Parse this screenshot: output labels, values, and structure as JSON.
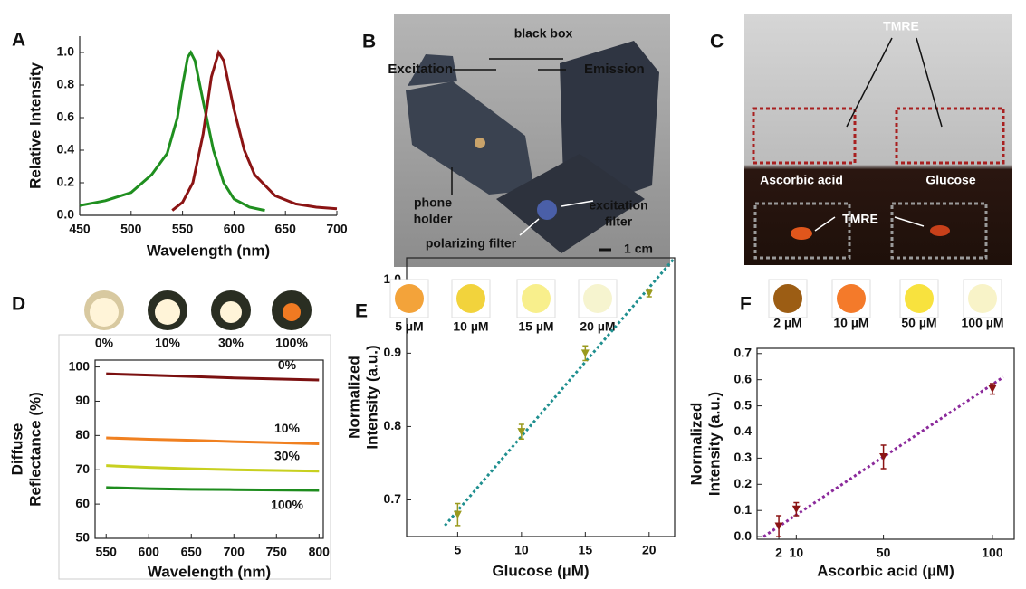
{
  "chart_data": [
    {
      "type": "line",
      "panel": "A",
      "xlabel": "Wavelength (nm)",
      "ylabel": [
        "Relative Intensity"
      ],
      "xlim": [
        450,
        700
      ],
      "ylim": [
        0,
        1.1
      ],
      "xticks": [
        450,
        500,
        550,
        600,
        650,
        700
      ],
      "yticks": [
        {
          "value": 0,
          "label": "0.0"
        },
        0.2,
        0.4,
        0.6,
        0.8,
        {
          "value": 1,
          "label": "1.0"
        }
      ],
      "series": [
        {
          "name": "Excitation",
          "color": "#1f8f1f",
          "x": [
            450,
            475,
            500,
            520,
            535,
            545,
            550,
            555,
            558,
            562,
            570,
            580,
            590,
            600,
            615,
            630
          ],
          "values": [
            0.06,
            0.09,
            0.14,
            0.25,
            0.38,
            0.6,
            0.8,
            0.97,
            1.0,
            0.95,
            0.7,
            0.4,
            0.2,
            0.1,
            0.05,
            0.03
          ]
        },
        {
          "name": "Emission",
          "color": "#8b1414",
          "x": [
            540,
            550,
            560,
            570,
            578,
            585,
            590,
            600,
            610,
            620,
            640,
            660,
            680,
            700
          ],
          "values": [
            0.03,
            0.08,
            0.2,
            0.5,
            0.85,
            1.0,
            0.95,
            0.65,
            0.4,
            0.25,
            0.12,
            0.07,
            0.05,
            0.04
          ]
        }
      ]
    },
    {
      "type": "line",
      "panel": "D",
      "xlabel": "Wavelength (nm)",
      "ylabel": [
        "Diffuse",
        "Reflectance (%)"
      ],
      "xlim": [
        537,
        805
      ],
      "ylim": [
        50,
        102
      ],
      "xticks": [
        550,
        600,
        650,
        700,
        750,
        800
      ],
      "yticks": [
        50,
        60,
        70,
        80,
        90,
        100
      ],
      "series": [
        {
          "name": "0%",
          "color": "#7b1010",
          "x": [
            550,
            600,
            650,
            700,
            750,
            800
          ],
          "values": [
            98,
            97.6,
            97.2,
            96.8,
            96.5,
            96.2
          ]
        },
        {
          "name": "10%",
          "color": "#f08020",
          "x": [
            550,
            600,
            650,
            700,
            750,
            800
          ],
          "values": [
            79.3,
            78.9,
            78.6,
            78.2,
            77.9,
            77.6
          ]
        },
        {
          "name": "30%",
          "color": "#c8d020",
          "x": [
            550,
            600,
            650,
            700,
            750,
            800
          ],
          "values": [
            71.2,
            70.7,
            70.3,
            70,
            69.8,
            69.6
          ]
        },
        {
          "name": "100%",
          "color": "#1e8c1e",
          "x": [
            550,
            600,
            650,
            700,
            750,
            800
          ],
          "values": [
            64.8,
            64.5,
            64.3,
            64.2,
            64.1,
            64
          ]
        }
      ]
    },
    {
      "type": "scatter",
      "panel": "E",
      "xlabel": "Glucose (µM)",
      "ylabel": [
        "Normalized",
        "Intensity (a.u.)"
      ],
      "xlim": [
        1,
        22
      ],
      "ylim": [
        0.65,
        1.03
      ],
      "xticks": [
        5,
        10,
        15,
        20
      ],
      "yticks": [
        0.7,
        0.8,
        0.9,
        {
          "value": 1,
          "label": "1.0"
        }
      ],
      "swatches": [
        {
          "label": "5 µM",
          "color": "#f3a33a"
        },
        {
          "label": "10 µM",
          "color": "#f2d33c"
        },
        {
          "label": "15 µM",
          "color": "#f8ef8c"
        },
        {
          "label": "20 µM",
          "color": "#f6f4cf"
        }
      ],
      "color": "#9a9a1e",
      "x": [
        5,
        10,
        15,
        20
      ],
      "values": [
        0.68,
        0.793,
        0.9,
        0.982
      ],
      "errors": [
        0.015,
        0.01,
        0.01,
        0.005
      ],
      "fit": {
        "color": "#1f8f8f",
        "x": [
          4,
          22
        ],
        "values": [
          0.665,
          1.03
        ]
      }
    },
    {
      "type": "scatter",
      "panel": "F",
      "xlabel": "Ascorbic acid (µM)",
      "ylabel": [
        "Normalized",
        "Intensity (a.u.)"
      ],
      "xlim": [
        -8,
        110
      ],
      "ylim": [
        -0.01,
        0.72
      ],
      "xticks": [
        2,
        10,
        50,
        100
      ],
      "yticks": [
        {
          "value": 0,
          "label": "0.0"
        },
        0.1,
        0.2,
        0.3,
        0.4,
        0.5,
        0.6,
        0.7
      ],
      "swatches": [
        {
          "label": "2 µM",
          "color": "#9c5d14"
        },
        {
          "label": "10 µM",
          "color": "#f47a2a"
        },
        {
          "label": "50 µM",
          "color": "#f8e23e"
        },
        {
          "label": "100 µM",
          "color": "#f8f3c8"
        }
      ],
      "color": "#8b1414",
      "x": [
        2,
        10,
        50,
        100
      ],
      "values": [
        0.04,
        0.105,
        0.305,
        0.565
      ],
      "errors": [
        0.04,
        0.025,
        0.045,
        0.02
      ],
      "fit": {
        "color": "#8b2a9b",
        "x": [
          -5,
          105
        ],
        "values": [
          0,
          0.61
        ]
      }
    }
  ],
  "photos": [
    {
      "panel": "B",
      "labels": [
        [
          "black box"
        ],
        [
          "phone",
          "holder"
        ],
        [
          "excitation",
          "filter"
        ],
        [
          "polarizing filter"
        ],
        [
          "1 cm"
        ]
      ]
    },
    {
      "panel": "C",
      "labels": [
        [
          "TMRE"
        ],
        [
          "Ascorbic acid"
        ],
        [
          "Glucose"
        ],
        [
          "TMRE"
        ]
      ]
    }
  ]
}
